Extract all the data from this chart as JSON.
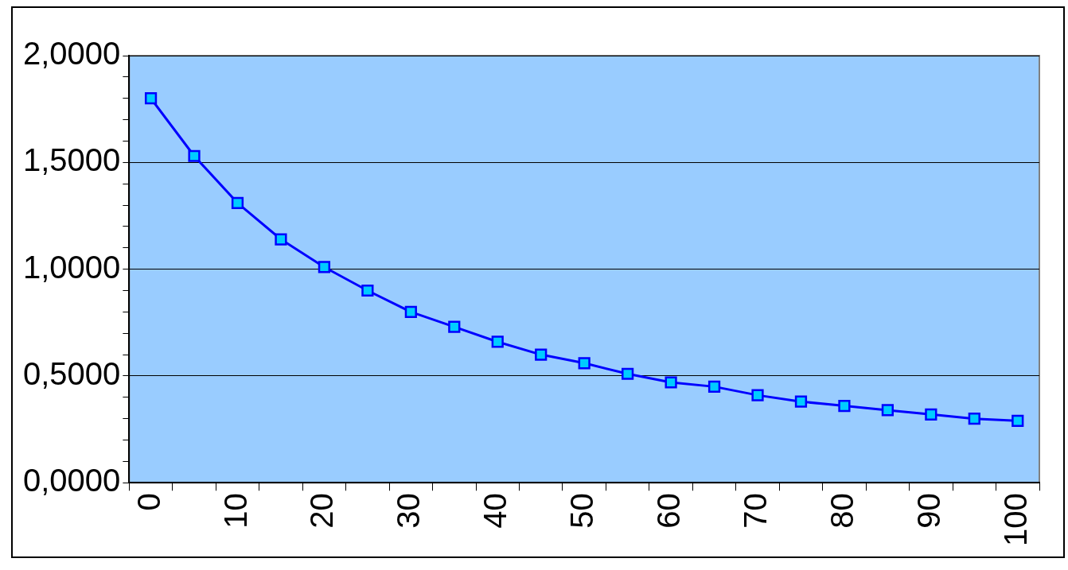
{
  "chart_data": {
    "type": "line",
    "categories": [
      "0",
      null,
      "10",
      null,
      "20",
      null,
      "30",
      null,
      "40",
      null,
      "50",
      null,
      "60",
      null,
      "70",
      null,
      "80",
      null,
      "90",
      null,
      "100"
    ],
    "series": [
      {
        "color": "#0000ff",
        "values": [
          1.8,
          1.53,
          1.31,
          1.14,
          1.01,
          0.9,
          0.8,
          0.73,
          0.66,
          0.6,
          0.56,
          0.51,
          0.47,
          0.45,
          0.41,
          0.38,
          0.36,
          0.34,
          0.32,
          0.3,
          0.29
        ]
      }
    ],
    "ylim": [
      0,
      2
    ],
    "yticks": [
      {
        "value": 0,
        "label": "0,0000"
      },
      {
        "value": 0.1,
        "label": null
      },
      {
        "value": 0.2,
        "label": null
      },
      {
        "value": 0.3,
        "label": null
      },
      {
        "value": 0.4,
        "label": null
      },
      {
        "value": 0.5,
        "label": "0,5000"
      },
      {
        "value": 0.6,
        "label": null
      },
      {
        "value": 0.7,
        "label": null
      },
      {
        "value": 0.8,
        "label": null
      },
      {
        "value": 0.9,
        "label": null
      },
      {
        "value": 1,
        "label": "1,0000"
      },
      {
        "value": 1.1,
        "label": null
      },
      {
        "value": 1.2,
        "label": null
      },
      {
        "value": 1.3,
        "label": null
      },
      {
        "value": 1.4,
        "label": null
      },
      {
        "value": 1.5,
        "label": "1,5000"
      },
      {
        "value": 1.6,
        "label": null
      },
      {
        "value": 1.7,
        "label": null
      },
      {
        "value": 1.8,
        "label": null
      },
      {
        "value": 1.9,
        "label": null
      },
      {
        "value": 2,
        "label": "2,0000"
      }
    ],
    "grid": "y",
    "marker": "square",
    "line_style": "solid",
    "legend": false
  }
}
